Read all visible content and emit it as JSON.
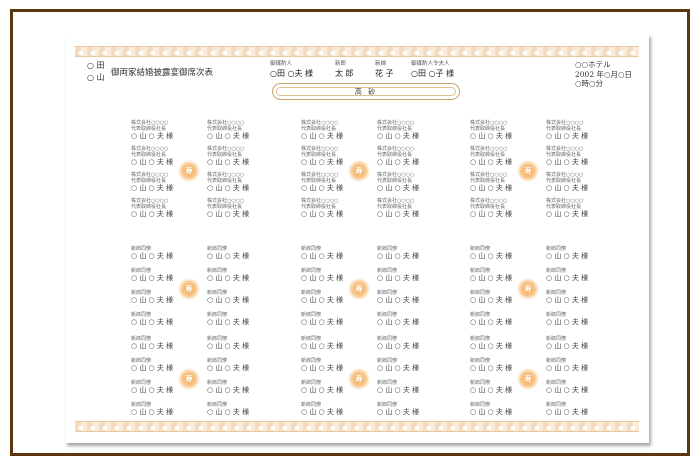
{
  "header": {
    "families": [
      "○ 田",
      "○ 山"
    ],
    "title": "御両家結婚披露宴御席次表",
    "matchmaker_groom": {
      "label": "御媒酌人",
      "name": "○田 ○夫 様"
    },
    "groom": {
      "label": "新郎",
      "name": "太 郎"
    },
    "bride": {
      "label": "新婦",
      "name": "花 子"
    },
    "matchmaker_bride": {
      "label": "御媒酌人令夫人",
      "name": "○田 ○子 様"
    },
    "hotel": "○○ホテル",
    "date": "2002 年○月○日",
    "time": "○時○分"
  },
  "dais": {
    "label": "高 砂"
  },
  "kotobuki": "寿",
  "colors": {
    "frame": "#5a3510",
    "lace": "#f4dcc0",
    "kotobuki": "#f3a14a"
  },
  "tables": [
    {
      "seats": [
        {
          "company": "株式会社○○○○",
          "position": "代表取締役社長",
          "name": "○ 山 ○ 夫 様"
        },
        {
          "company": "株式会社○○○○",
          "position": "代表取締役社長",
          "name": "○ 山 ○ 夫 様"
        },
        {
          "company": "株式会社○○○○",
          "position": "代表取締役社長",
          "name": "○ 山 ○ 夫 様"
        },
        {
          "company": "株式会社○○○○",
          "position": "代表取締役社長",
          "name": "○ 山 ○ 夫 様"
        },
        {
          "company": "株式会社○○○○",
          "position": "代表取締役社長",
          "name": "○ 山 ○ 夫 様"
        },
        {
          "company": "株式会社○○○○",
          "position": "代表取締役社長",
          "name": "○ 山 ○ 夫 様"
        },
        {
          "company": "株式会社○○○○",
          "position": "代表取締役社長",
          "name": "○ 山 ○ 夫 様"
        },
        {
          "company": "株式会社○○○○",
          "position": "代表取締役社長",
          "name": "○ 山 ○ 夫 様"
        }
      ]
    },
    {
      "seats": [
        {
          "company": "株式会社○○○○",
          "position": "代表取締役社長",
          "name": "○ 山 ○ 夫 様"
        },
        {
          "company": "株式会社○○○○",
          "position": "代表取締役社長",
          "name": "○ 山 ○ 夫 様"
        },
        {
          "company": "株式会社○○○○",
          "position": "代表取締役社長",
          "name": "○ 山 ○ 夫 様"
        },
        {
          "company": "株式会社○○○○",
          "position": "代表取締役社長",
          "name": "○ 山 ○ 夫 様"
        },
        {
          "company": "株式会社○○○○",
          "position": "代表取締役社長",
          "name": "○ 山 ○ 夫 様"
        },
        {
          "company": "株式会社○○○○",
          "position": "代表取締役社長",
          "name": "○ 山 ○ 夫 様"
        },
        {
          "company": "株式会社○○○○",
          "position": "代表取締役社長",
          "name": "○ 山 ○ 夫 様"
        },
        {
          "company": "株式会社○○○○",
          "position": "代表取締役社長",
          "name": "○ 山 ○ 夫 様"
        }
      ]
    },
    {
      "seats": [
        {
          "company": "株式会社○○○○",
          "position": "代表取締役社長",
          "name": "○ 山 ○ 夫 様"
        },
        {
          "company": "株式会社○○○○",
          "position": "代表取締役社長",
          "name": "○ 山 ○ 夫 様"
        },
        {
          "company": "株式会社○○○○",
          "position": "代表取締役社長",
          "name": "○ 山 ○ 夫 様"
        },
        {
          "company": "株式会社○○○○",
          "position": "代表取締役社長",
          "name": "○ 山 ○ 夫 様"
        },
        {
          "company": "株式会社○○○○",
          "position": "代表取締役社長",
          "name": "○ 山 ○ 夫 様"
        },
        {
          "company": "株式会社○○○○",
          "position": "代表取締役社長",
          "name": "○ 山 ○ 夫 様"
        },
        {
          "company": "株式会社○○○○",
          "position": "代表取締役社長",
          "name": "○ 山 ○ 夫 様"
        },
        {
          "company": "株式会社○○○○",
          "position": "代表取締役社長",
          "name": "○ 山 ○ 夫 様"
        }
      ]
    },
    {
      "seats": [
        {
          "company": "新郎同僚",
          "name": "○ 山 ○ 夫 様"
        },
        {
          "company": "新郎同僚",
          "name": "○ 山 ○ 夫 様"
        },
        {
          "company": "新郎同僚",
          "name": "○ 山 ○ 夫 様"
        },
        {
          "company": "新郎同僚",
          "name": "○ 山 ○ 夫 様"
        },
        {
          "company": "新郎同僚",
          "name": "○ 山 ○ 夫 様"
        },
        {
          "company": "新郎同僚",
          "name": "○ 山 ○ 夫 様"
        },
        {
          "company": "新郎同僚",
          "name": "○ 山 ○ 夫 様"
        },
        {
          "company": "新郎同僚",
          "name": "○ 山 ○ 夫 様"
        }
      ]
    },
    {
      "seats": [
        {
          "company": "新郎同僚",
          "name": "○ 山 ○ 夫 様"
        },
        {
          "company": "新郎同僚",
          "name": "○ 山 ○ 夫 様"
        },
        {
          "company": "新郎同僚",
          "name": "○ 山 ○ 夫 様"
        },
        {
          "company": "新郎同僚",
          "name": "○ 山 ○ 夫 様"
        },
        {
          "company": "新郎同僚",
          "name": "○ 山 ○ 夫 様"
        },
        {
          "company": "新郎同僚",
          "name": "○ 山 ○ 夫 様"
        },
        {
          "company": "新郎同僚",
          "name": "○ 山 ○ 夫 様"
        },
        {
          "company": "新郎同僚",
          "name": "○ 山 ○ 夫 様"
        }
      ]
    },
    {
      "seats": [
        {
          "company": "新郎同僚",
          "name": "○ 山 ○ 夫 様"
        },
        {
          "company": "新郎同僚",
          "name": "○ 山 ○ 夫 様"
        },
        {
          "company": "新郎同僚",
          "name": "○ 山 ○ 夫 様"
        },
        {
          "company": "新郎同僚",
          "name": "○ 山 ○ 夫 様"
        },
        {
          "company": "新郎同僚",
          "name": "○ 山 ○ 夫 様"
        },
        {
          "company": "新郎同僚",
          "name": "○ 山 ○ 夫 様"
        },
        {
          "company": "新郎同僚",
          "name": "○ 山 ○ 夫 様"
        },
        {
          "company": "新郎同僚",
          "name": "○ 山 ○ 夫 様"
        }
      ]
    },
    {
      "seats": [
        {
          "company": "新郎同僚",
          "name": "○ 山 ○ 夫 様"
        },
        {
          "company": "新郎同僚",
          "name": "○ 山 ○ 夫 様"
        },
        {
          "company": "新郎同僚",
          "name": "○ 山 ○ 夫 様"
        },
        {
          "company": "新郎同僚",
          "name": "○ 山 ○ 夫 様"
        },
        {
          "company": "新郎同僚",
          "name": "○ 山 ○ 夫 様"
        },
        {
          "company": "新郎同僚",
          "name": "○ 山 ○ 夫 様"
        },
        {
          "company": "新郎同僚",
          "name": "○ 山 ○ 夫 様"
        },
        {
          "company": "新郎同僚",
          "name": "○ 山 ○ 夫 様"
        }
      ]
    },
    {
      "seats": [
        {
          "company": "新郎同僚",
          "name": "○ 山 ○ 夫 様"
        },
        {
          "company": "新郎同僚",
          "name": "○ 山 ○ 夫 様"
        },
        {
          "company": "新郎同僚",
          "name": "○ 山 ○ 夫 様"
        },
        {
          "company": "新郎同僚",
          "name": "○ 山 ○ 夫 様"
        },
        {
          "company": "新郎同僚",
          "name": "○ 山 ○ 夫 様"
        },
        {
          "company": "新郎同僚",
          "name": "○ 山 ○ 夫 様"
        },
        {
          "company": "新郎同僚",
          "name": "○ 山 ○ 夫 様"
        },
        {
          "company": "新郎同僚",
          "name": "○ 山 ○ 夫 様"
        }
      ]
    },
    {
      "seats": [
        {
          "company": "新郎同僚",
          "name": "○ 山 ○ 夫 様"
        },
        {
          "company": "新郎同僚",
          "name": "○ 山 ○ 夫 様"
        },
        {
          "company": "新郎同僚",
          "name": "○ 山 ○ 夫 様"
        },
        {
          "company": "新郎同僚",
          "name": "○ 山 ○ 夫 様"
        },
        {
          "company": "新郎同僚",
          "name": "○ 山 ○ 夫 様"
        },
        {
          "company": "新郎同僚",
          "name": "○ 山 ○ 夫 様"
        },
        {
          "company": "新郎同僚",
          "name": "○ 山 ○ 夫 様"
        },
        {
          "company": "新郎同僚",
          "name": "○ 山 ○ 夫 様"
        }
      ]
    }
  ]
}
